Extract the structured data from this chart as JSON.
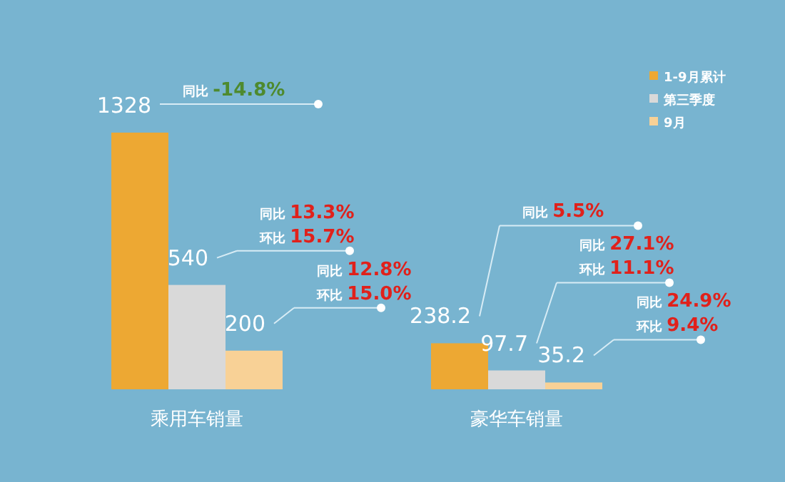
{
  "chart_data": {
    "type": "bar",
    "relative": false,
    "data_labels": true,
    "legend": "top right",
    "categories": [
      "乘用车销量",
      "豪华车销量"
    ],
    "series": [
      {
        "name": "1-9月累计",
        "color": "#eda833",
        "values": [
          1328,
          238.2
        ]
      },
      {
        "name": "第三季度",
        "color": "#d9d9d9",
        "values": [
          540,
          97.7
        ]
      },
      {
        "name": "9月",
        "color": "#f8d196",
        "values": [
          200,
          35.2
        ]
      }
    ],
    "annotations": [
      "同比 -14.8%",
      "同比 13.3%\n环比 15.7%",
      "同比 12.8%\n环比 15.0%",
      "同比 5.5%",
      "同比 27.1%\n环比 11.1%",
      "同比 24.9%\n环比 9.4%"
    ]
  }
}
